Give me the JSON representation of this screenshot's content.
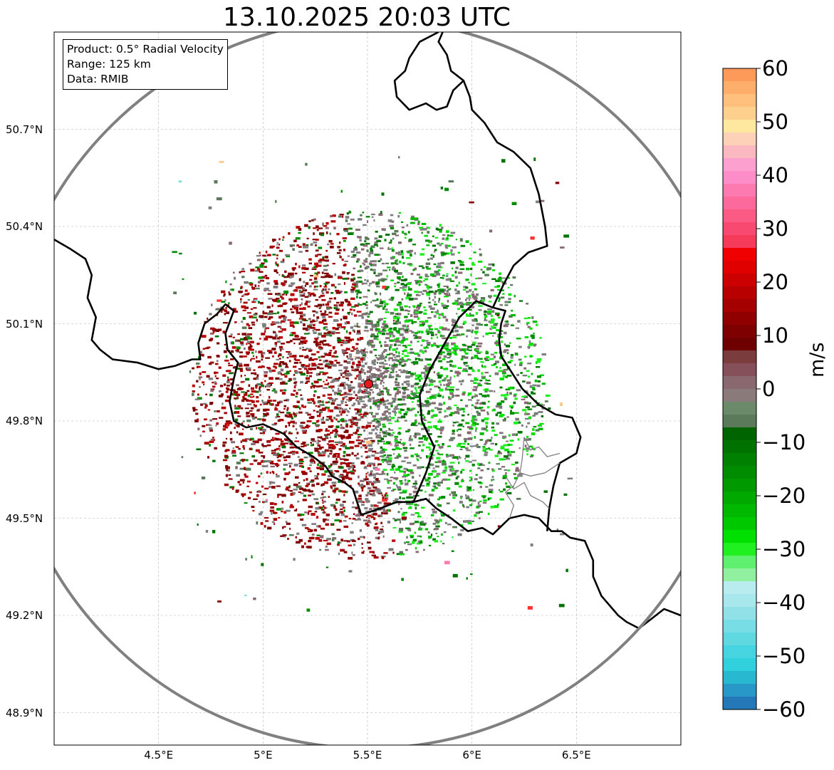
{
  "map": {
    "title": "13.10.2025 20:03 UTC",
    "info_box": {
      "product": "Product: 0.5° Radial Velocity",
      "range": "Range: 125 km",
      "data": "Data: RMIB"
    },
    "extent": {
      "lon_min": 4.0,
      "lon_max": 7.0,
      "lat_min": 48.8,
      "lat_max": 51.0
    },
    "radar_site": {
      "lon": 5.505,
      "lat": 49.914,
      "color": "#e31a1c"
    },
    "lat_ticks": [
      {
        "value": 50.7,
        "label": "50.7°N"
      },
      {
        "value": 50.4,
        "label": "50.4°N"
      },
      {
        "value": 50.1,
        "label": "50.1°N"
      },
      {
        "value": 49.8,
        "label": "49.8°N"
      },
      {
        "value": 49.5,
        "label": "49.5°N"
      },
      {
        "value": 49.2,
        "label": "49.2°N"
      },
      {
        "value": 48.9,
        "label": "48.9°N"
      }
    ],
    "lon_ticks": [
      {
        "value": 4.5,
        "label": "4.5°E"
      },
      {
        "value": 5.0,
        "label": "5°E"
      },
      {
        "value": 5.5,
        "label": "5.5°E"
      },
      {
        "value": 6.0,
        "label": "6°E"
      },
      {
        "value": 6.5,
        "label": "6.5°E"
      }
    ],
    "range_ring_color": "#808080",
    "border_color": "#000000",
    "province_color": "#808080",
    "borders": [
      [
        [
          4.0,
          50.36
        ],
        [
          4.08,
          50.33
        ],
        [
          4.15,
          50.3
        ],
        [
          4.18,
          50.25
        ],
        [
          4.16,
          50.18
        ],
        [
          4.2,
          50.12
        ],
        [
          4.18,
          50.05
        ],
        [
          4.22,
          50.02
        ],
        [
          4.28,
          49.99
        ],
        [
          4.4,
          49.98
        ],
        [
          4.5,
          49.96
        ],
        [
          4.58,
          49.97
        ],
        [
          4.66,
          49.99
        ],
        [
          4.7,
          49.99
        ],
        [
          4.69,
          50.04
        ],
        [
          4.72,
          50.1
        ],
        [
          4.78,
          50.13
        ],
        [
          4.82,
          50.16
        ],
        [
          4.86,
          50.14
        ],
        [
          4.82,
          50.07
        ],
        [
          4.83,
          50.02
        ],
        [
          4.88,
          49.98
        ],
        [
          4.86,
          49.93
        ],
        [
          4.84,
          49.86
        ],
        [
          4.86,
          49.8
        ],
        [
          4.92,
          49.78
        ],
        [
          5.0,
          49.79
        ],
        [
          5.1,
          49.76
        ],
        [
          5.16,
          49.72
        ],
        [
          5.24,
          49.69
        ],
        [
          5.3,
          49.66
        ],
        [
          5.33,
          49.63
        ],
        [
          5.39,
          49.61
        ],
        [
          5.43,
          49.59
        ],
        [
          5.47,
          49.51
        ],
        [
          5.56,
          49.53
        ],
        [
          5.64,
          49.55
        ],
        [
          5.72,
          49.55
        ],
        [
          5.78,
          49.56
        ],
        [
          5.83,
          49.53
        ],
        [
          5.9,
          49.5
        ],
        [
          5.98,
          49.46
        ],
        [
          6.05,
          49.47
        ],
        [
          6.1,
          49.45
        ],
        [
          6.18,
          49.5
        ],
        [
          6.25,
          49.51
        ],
        [
          6.32,
          49.5
        ],
        [
          6.38,
          49.46
        ],
        [
          6.43,
          49.46
        ],
        [
          6.47,
          49.44
        ],
        [
          6.54,
          49.43
        ],
        [
          6.58,
          49.37
        ],
        [
          6.58,
          49.32
        ],
        [
          6.62,
          49.26
        ],
        [
          6.66,
          49.23
        ],
        [
          6.7,
          49.2
        ],
        [
          6.74,
          49.18
        ],
        [
          6.8,
          49.16
        ],
        [
          6.86,
          49.19
        ],
        [
          6.92,
          49.22
        ],
        [
          7.0,
          49.2
        ]
      ],
      [
        [
          5.72,
          49.55
        ],
        [
          5.78,
          49.64
        ],
        [
          5.82,
          49.72
        ],
        [
          5.76,
          49.8
        ],
        [
          5.75,
          49.88
        ],
        [
          5.8,
          49.96
        ],
        [
          5.87,
          50.04
        ],
        [
          5.94,
          50.12
        ],
        [
          6.02,
          50.17
        ],
        [
          6.1,
          50.15
        ],
        [
          6.16,
          50.14
        ],
        [
          6.14,
          50.1
        ],
        [
          6.13,
          50.05
        ],
        [
          6.14,
          50.0
        ],
        [
          6.18,
          49.96
        ],
        [
          6.24,
          49.9
        ],
        [
          6.32,
          49.85
        ],
        [
          6.4,
          49.82
        ],
        [
          6.48,
          49.81
        ],
        [
          6.52,
          49.75
        ],
        [
          6.5,
          49.7
        ],
        [
          6.42,
          49.67
        ],
        [
          6.39,
          49.6
        ],
        [
          6.37,
          49.53
        ],
        [
          6.36,
          49.46
        ]
      ],
      [
        [
          6.1,
          50.15
        ],
        [
          6.15,
          50.22
        ],
        [
          6.2,
          50.28
        ],
        [
          6.27,
          50.32
        ],
        [
          6.36,
          50.34
        ],
        [
          6.35,
          50.4
        ],
        [
          6.32,
          50.5
        ],
        [
          6.28,
          50.58
        ],
        [
          6.2,
          50.63
        ],
        [
          6.12,
          50.66
        ],
        [
          6.06,
          50.72
        ],
        [
          6.0,
          50.76
        ],
        [
          5.99,
          50.8
        ],
        [
          5.96,
          50.85
        ],
        [
          5.9,
          50.88
        ],
        [
          5.88,
          50.93
        ],
        [
          5.84,
          50.97
        ],
        [
          5.86,
          51.0
        ]
      ],
      [
        [
          5.84,
          51.0
        ],
        [
          5.75,
          50.97
        ],
        [
          5.7,
          50.92
        ],
        [
          5.68,
          50.88
        ],
        [
          5.63,
          50.85
        ],
        [
          5.64,
          50.8
        ],
        [
          5.7,
          50.76
        ],
        [
          5.78,
          50.78
        ],
        [
          5.83,
          50.76
        ],
        [
          5.88,
          50.77
        ],
        [
          5.91,
          50.82
        ],
        [
          5.96,
          50.85
        ]
      ]
    ],
    "province_lines": [
      [
        [
          6.25,
          49.75
        ],
        [
          6.28,
          49.71
        ],
        [
          6.32,
          49.72
        ],
        [
          6.36,
          49.69
        ],
        [
          6.42,
          49.7
        ]
      ],
      [
        [
          6.16,
          49.63
        ],
        [
          6.2,
          49.59
        ],
        [
          6.25,
          49.61
        ],
        [
          6.28,
          49.57
        ],
        [
          6.34,
          49.55
        ],
        [
          6.37,
          49.53
        ]
      ],
      [
        [
          6.18,
          49.5
        ],
        [
          6.2,
          49.54
        ],
        [
          6.16,
          49.58
        ],
        [
          6.2,
          49.6
        ],
        [
          6.23,
          49.64
        ]
      ],
      [
        [
          6.25,
          49.75
        ],
        [
          6.24,
          49.68
        ],
        [
          6.23,
          49.64
        ],
        [
          6.28,
          49.63
        ],
        [
          6.35,
          49.64
        ],
        [
          6.42,
          49.67
        ]
      ]
    ]
  },
  "colorbar": {
    "label": "m/s",
    "vmin": -60,
    "vmax": 60,
    "ticks": [
      "60",
      "50",
      "40",
      "30",
      "20",
      "10",
      "0",
      "−10",
      "−20",
      "−30",
      "−40",
      "−50",
      "−60"
    ],
    "colors_top_to_bottom": [
      "#fd9a5a",
      "#fdae6b",
      "#fec07c",
      "#fdd08d",
      "#fee8a0",
      "#fdd0b8",
      "#fcb8c0",
      "#fca0d0",
      "#fc8dc8",
      "#fc7ab0",
      "#fb6a9a",
      "#fb5a85",
      "#f84a70",
      "#f53a5a",
      "#f00000",
      "#e00000",
      "#cc0000",
      "#b80000",
      "#a50000",
      "#900000",
      "#7e0000",
      "#6e0000",
      "#7a3c3c",
      "#85505a",
      "#8a6870",
      "#8a7a7a",
      "#6a8a6a",
      "#5a7a5a",
      "#006400",
      "#007200",
      "#008000",
      "#008c00",
      "#009900",
      "#00a800",
      "#00b800",
      "#00c800",
      "#00e000",
      "#20f020",
      "#60f070",
      "#90f0a0",
      "#b8ecee",
      "#a8e8ec",
      "#90e2e8",
      "#78dde4",
      "#60d8e0",
      "#45d4e0",
      "#30d0dc",
      "#28b8d0",
      "#2898c8",
      "#2478b8"
    ]
  },
  "echo_palette": [
    "#8b0000",
    "#a50000",
    "#b80000",
    "#7a0000",
    "#808080",
    "#7a7a7a",
    "#8a6870",
    "#5a7a5a",
    "#007200",
    "#008c00",
    "#00b800",
    "#00e000",
    "#20f020",
    "#ff3030",
    "#fc7ab0",
    "#78dde4",
    "#fec07c"
  ]
}
